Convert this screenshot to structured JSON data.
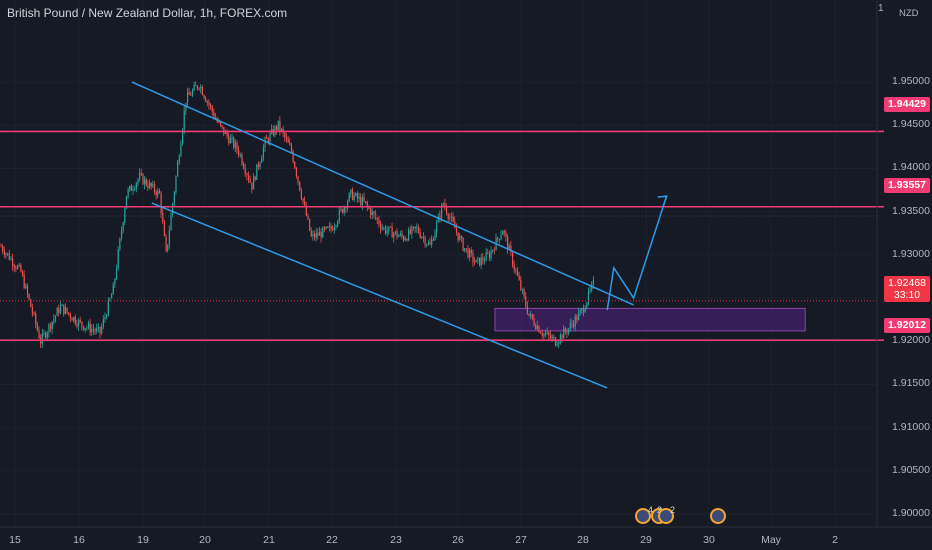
{
  "header": {
    "title": "British Pound / New Zealand Dollar, 1h, FOREX.com",
    "top_marker": "1",
    "currency": "NZD"
  },
  "price_axis": {
    "min": 1.8985,
    "max": 1.9595,
    "ticks": [
      "1.95000",
      "1.94500",
      "1.94000",
      "1.93500",
      "1.93000",
      "1.92500",
      "1.92000",
      "1.91500",
      "1.91000",
      "1.90500",
      "1.90000"
    ]
  },
  "levels": [
    {
      "label": "1.94429",
      "value": 1.94429,
      "color": "#f23b73"
    },
    {
      "label": "1.93557",
      "value": 1.93557,
      "color": "#f23b73"
    },
    {
      "label": "1.92012",
      "value": 1.92012,
      "color": "#f23b73"
    }
  ],
  "current_price": {
    "label": "1.92468",
    "value": 1.92468,
    "countdown": "33:10",
    "color": "#f23645"
  },
  "time_axis": {
    "labels": [
      "15",
      "16",
      "19",
      "20",
      "21",
      "22",
      "23",
      "26",
      "27",
      "28",
      "29",
      "30",
      "May",
      "2"
    ]
  },
  "events": [
    {
      "icon": "gb-flag-icon",
      "count": "4"
    },
    {
      "icon": "nz-flag-icon",
      "count": "2"
    },
    {
      "icon": "gb-flag-icon",
      "count": "2"
    },
    {
      "icon": "nz-flag-icon",
      "count": ""
    }
  ],
  "chart_data": {
    "type": "candlestick",
    "symbol": "GBPNZD",
    "interval": "1h",
    "ylim": [
      1.8985,
      1.9595
    ],
    "x_labels": [
      "15",
      "16",
      "19",
      "20",
      "21",
      "22",
      "23",
      "26",
      "27",
      "28",
      "29",
      "30",
      "May",
      "2"
    ],
    "close_path": [
      [
        0,
        1.931
      ],
      [
        3,
        1.928
      ],
      [
        6,
        1.92
      ],
      [
        9,
        1.924
      ],
      [
        12,
        1.922
      ],
      [
        15,
        1.921
      ],
      [
        17,
        1.926
      ],
      [
        19,
        1.937
      ],
      [
        21,
        1.939
      ],
      [
        24,
        1.937
      ],
      [
        25,
        1.93
      ],
      [
        28,
        1.948
      ],
      [
        30,
        1.9498
      ],
      [
        33,
        1.945
      ],
      [
        36,
        1.942
      ],
      [
        38,
        1.938
      ],
      [
        40,
        1.943
      ],
      [
        42,
        1.945
      ],
      [
        44,
        1.942
      ],
      [
        47,
        1.932
      ],
      [
        50,
        1.933
      ],
      [
        53,
        1.937
      ],
      [
        55,
        1.936
      ],
      [
        58,
        1.933
      ],
      [
        61,
        1.932
      ],
      [
        63,
        1.933
      ],
      [
        65,
        1.931
      ],
      [
        67,
        1.936
      ],
      [
        70,
        1.931
      ],
      [
        72,
        1.929
      ],
      [
        74,
        1.93
      ],
      [
        76,
        1.933
      ],
      [
        78,
        1.928
      ],
      [
        80,
        1.923
      ],
      [
        82,
        1.921
      ],
      [
        84,
        1.92
      ],
      [
        86,
        1.9215
      ],
      [
        88,
        1.9235
      ],
      [
        90,
        1.927
      ]
    ],
    "shapes": {
      "channel_upper": [
        [
          20,
          1.95
        ],
        [
          96,
          1.9242
        ]
      ],
      "channel_lower": [
        [
          23,
          1.936
        ],
        [
          92,
          1.9146
        ]
      ],
      "demand_zone": {
        "x": [
          75,
          122
        ],
        "y_low": 1.9212,
        "y_high": 1.9238
      },
      "projection": [
        [
          92,
          1.9236
        ],
        [
          93,
          1.9285
        ],
        [
          96,
          1.925
        ],
        [
          101,
          1.9368
        ]
      ]
    },
    "grid": true
  }
}
